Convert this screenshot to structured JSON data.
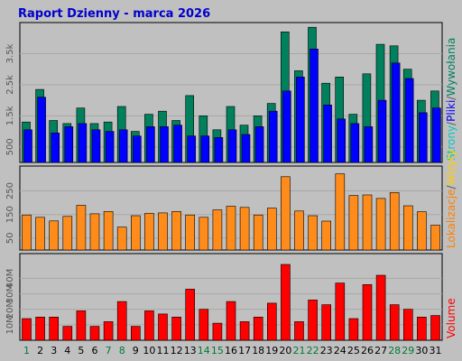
{
  "chart_data": {
    "type": "bar",
    "title": "Raport Dzienny - marca 2026",
    "categories": [
      "1",
      "2",
      "3",
      "4",
      "5",
      "6",
      "7",
      "8",
      "9",
      "10",
      "11",
      "12",
      "13",
      "14",
      "15",
      "16",
      "17",
      "18",
      "19",
      "20",
      "21",
      "22",
      "23",
      "24",
      "25",
      "26",
      "27",
      "28",
      "29",
      "30",
      "31"
    ],
    "weekend_days": [
      "1",
      "7",
      "8",
      "14",
      "15",
      "21",
      "22",
      "28",
      "29"
    ],
    "panels": [
      {
        "name": "hits",
        "yticks": [
          "500",
          "1.5k",
          "2.5k",
          "3.5k"
        ],
        "ylim": [
          0,
          4500
        ],
        "legend": [
          {
            "text": "Wywołania",
            "color": "#00805c"
          },
          {
            "text": "Pliki",
            "color": "#0000ff"
          },
          {
            "text": "Strony",
            "color": "#00c8c8"
          }
        ],
        "series": [
          {
            "name": "Wywołania",
            "color": "#00805c",
            "values": [
              1300,
              2350,
              1350,
              1250,
              1750,
              1250,
              1300,
              1800,
              1000,
              1550,
              1650,
              1350,
              2150,
              1500,
              1050,
              1800,
              1200,
              1500,
              1900,
              4200,
              2950,
              4350,
              2550,
              2750,
              1550,
              2850,
              3800,
              3750,
              3000,
              2000,
              2300
            ]
          },
          {
            "name": "Pliki",
            "color": "#0000ff",
            "values": [
              1050,
              2100,
              950,
              1150,
              1250,
              1050,
              1000,
              1050,
              850,
              1150,
              1150,
              1200,
              850,
              850,
              800,
              1050,
              900,
              1150,
              1650,
              2300,
              2750,
              3650,
              1850,
              1400,
              1250,
              1150,
              2000,
              3200,
              2700,
              1600,
              1750
            ]
          }
        ]
      },
      {
        "name": "visits",
        "yticks": [
          "50",
          "150",
          "250"
        ],
        "ylim": [
          0,
          355
        ],
        "legend": [
          {
            "text": "Wizyty",
            "color": "#ffcc00"
          },
          {
            "text": "Lokalizacje",
            "color": "#ff8000"
          }
        ],
        "series": [
          {
            "name": "Wizyty",
            "color": "#ff8c1a",
            "values": [
              148,
              138,
              123,
              142,
              189,
              153,
              163,
              97,
              145,
              155,
              157,
              163,
              148,
              138,
              170,
              185,
              180,
              148,
              177,
              310,
              165,
              145,
              122,
              322,
              230,
              233,
              218,
              243,
              187,
              162,
              105
            ]
          }
        ]
      },
      {
        "name": "volume",
        "yticks": [
          "10M",
          "20M",
          "30M",
          "40M"
        ],
        "ylim": [
          0,
          56
        ],
        "legend": [
          {
            "text": "Volume",
            "color": "#ff0000"
          }
        ],
        "series": [
          {
            "name": "Volume",
            "color": "#ff0000",
            "values": [
              14,
              15,
              15,
              9,
              19,
              9,
              12,
              25,
              9,
              19,
              17,
              15,
              33,
              20,
              11,
              25,
              12,
              15,
              24,
              49,
              12,
              26,
              23,
              37,
              14,
              36,
              42,
              23,
              20,
              15,
              16
            ]
          }
        ]
      }
    ]
  }
}
